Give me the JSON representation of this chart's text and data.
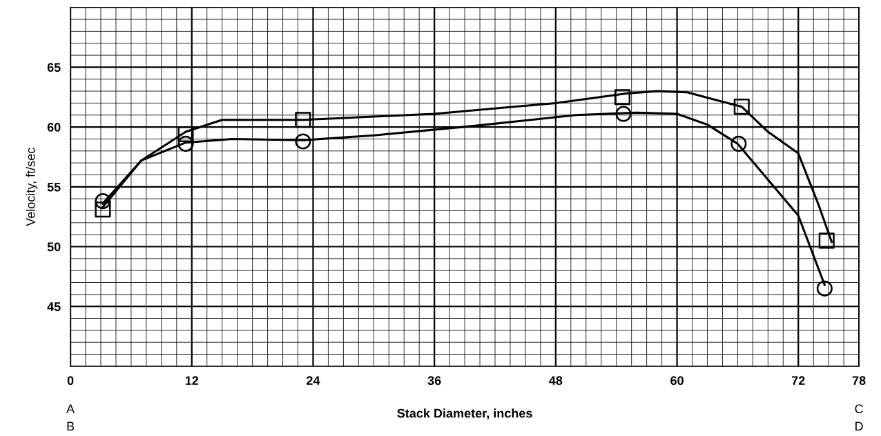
{
  "chart_data": {
    "type": "scatter",
    "xlabel": "Stack Diameter, inches",
    "ylabel": "Velocity, ft/sec",
    "xlim": [
      0,
      78
    ],
    "ylim": [
      40,
      70
    ],
    "xticks": [
      0,
      {
        "value": 1.5,
        "label": null
      },
      {
        "value": 3,
        "label": null
      },
      {
        "value": 4.5,
        "label": null
      },
      {
        "value": 6,
        "label": null
      },
      {
        "value": 7.5,
        "label": null
      },
      {
        "value": 9,
        "label": null
      },
      {
        "value": 10.5,
        "label": null
      },
      12,
      {
        "value": 13.5,
        "label": null
      },
      {
        "value": 15,
        "label": null
      },
      {
        "value": 16.5,
        "label": null
      },
      {
        "value": 18,
        "label": null
      },
      {
        "value": 19.5,
        "label": null
      },
      {
        "value": 21,
        "label": null
      },
      {
        "value": 22.5,
        "label": null
      },
      24,
      {
        "value": 25.5,
        "label": null
      },
      {
        "value": 27,
        "label": null
      },
      {
        "value": 28.5,
        "label": null
      },
      {
        "value": 30,
        "label": null
      },
      {
        "value": 31.5,
        "label": null
      },
      {
        "value": 33,
        "label": null
      },
      {
        "value": 34.5,
        "label": null
      },
      36,
      {
        "value": 37.5,
        "label": null
      },
      {
        "value": 39,
        "label": null
      },
      {
        "value": 40.5,
        "label": null
      },
      {
        "value": 42,
        "label": null
      },
      {
        "value": 43.5,
        "label": null
      },
      {
        "value": 45,
        "label": null
      },
      {
        "value": 46.5,
        "label": null
      },
      48,
      {
        "value": 49.5,
        "label": null
      },
      {
        "value": 51,
        "label": null
      },
      {
        "value": 52.5,
        "label": null
      },
      {
        "value": 54,
        "label": null
      },
      {
        "value": 55.5,
        "label": null
      },
      {
        "value": 57,
        "label": null
      },
      {
        "value": 58.5,
        "label": null
      },
      60,
      {
        "value": 61.5,
        "label": null
      },
      {
        "value": 63,
        "label": null
      },
      {
        "value": 64.5,
        "label": null
      },
      {
        "value": 66,
        "label": null
      },
      {
        "value": 67.5,
        "label": null
      },
      {
        "value": 69,
        "label": null
      },
      {
        "value": 70.5,
        "label": null
      },
      72,
      {
        "value": 73.5,
        "label": null
      },
      {
        "value": 75,
        "label": null
      },
      {
        "value": 76.5,
        "label": null
      },
      78
    ],
    "yticks": [
      {
        "value": 40,
        "label": null
      },
      {
        "value": 41,
        "label": null
      },
      {
        "value": 42,
        "label": null
      },
      {
        "value": 43,
        "label": null
      },
      {
        "value": 44,
        "label": null
      },
      45,
      {
        "value": 46,
        "label": null
      },
      {
        "value": 47,
        "label": null
      },
      {
        "value": 48,
        "label": null
      },
      {
        "value": 49,
        "label": null
      },
      50,
      {
        "value": 51,
        "label": null
      },
      {
        "value": 52,
        "label": null
      },
      {
        "value": 53,
        "label": null
      },
      {
        "value": 54,
        "label": null
      },
      55,
      {
        "value": 56,
        "label": null
      },
      {
        "value": 57,
        "label": null
      },
      {
        "value": 58,
        "label": null
      },
      {
        "value": 59,
        "label": null
      },
      60,
      {
        "value": 61,
        "label": null
      },
      {
        "value": 62,
        "label": null
      },
      {
        "value": 63,
        "label": null
      },
      {
        "value": 64,
        "label": null
      },
      65,
      {
        "value": 66,
        "label": null
      },
      {
        "value": 67,
        "label": null
      },
      {
        "value": 68,
        "label": null
      },
      {
        "value": 69,
        "label": null
      },
      {
        "value": 70,
        "label": null
      }
    ],
    "grid": true,
    "legend": false,
    "annotations": [
      "A",
      "B",
      "C",
      "D"
    ],
    "series": [
      {
        "type": "line",
        "marker": "none",
        "color": "#000000",
        "x": [
          3.2,
          7,
          11.4,
          16,
          23,
          30,
          40,
          50,
          56,
          60,
          63,
          66,
          69,
          72,
          74.6
        ],
        "values": [
          53.6,
          57.2,
          58.7,
          59.0,
          58.9,
          59.3,
          60.1,
          61.0,
          61.2,
          61.1,
          60.2,
          58.6,
          55.6,
          52.6,
          46.8
        ]
      },
      {
        "type": "line",
        "marker": "none",
        "color": "#000000",
        "x": [
          3.2,
          7,
          11.4,
          15,
          23,
          36,
          48,
          55,
          58,
          61,
          66.4,
          69,
          72,
          74,
          75.3
        ],
        "values": [
          53.3,
          57.2,
          59.6,
          60.6,
          60.6,
          61.1,
          62.0,
          62.8,
          63.0,
          62.9,
          61.7,
          59.6,
          57.8,
          53.5,
          50.4
        ]
      },
      {
        "marker": "circle",
        "color": "#000000",
        "x": [
          3.2,
          11.4,
          23,
          54.7,
          66.1,
          74.6
        ],
        "values": [
          53.8,
          58.6,
          58.8,
          61.1,
          58.6,
          46.5
        ]
      },
      {
        "marker": "square",
        "color": "#000000",
        "x": [
          3.2,
          11.4,
          23,
          54.6,
          66.4,
          74.8
        ],
        "values": [
          53.1,
          59.4,
          60.6,
          62.5,
          61.7,
          50.5
        ]
      }
    ]
  }
}
